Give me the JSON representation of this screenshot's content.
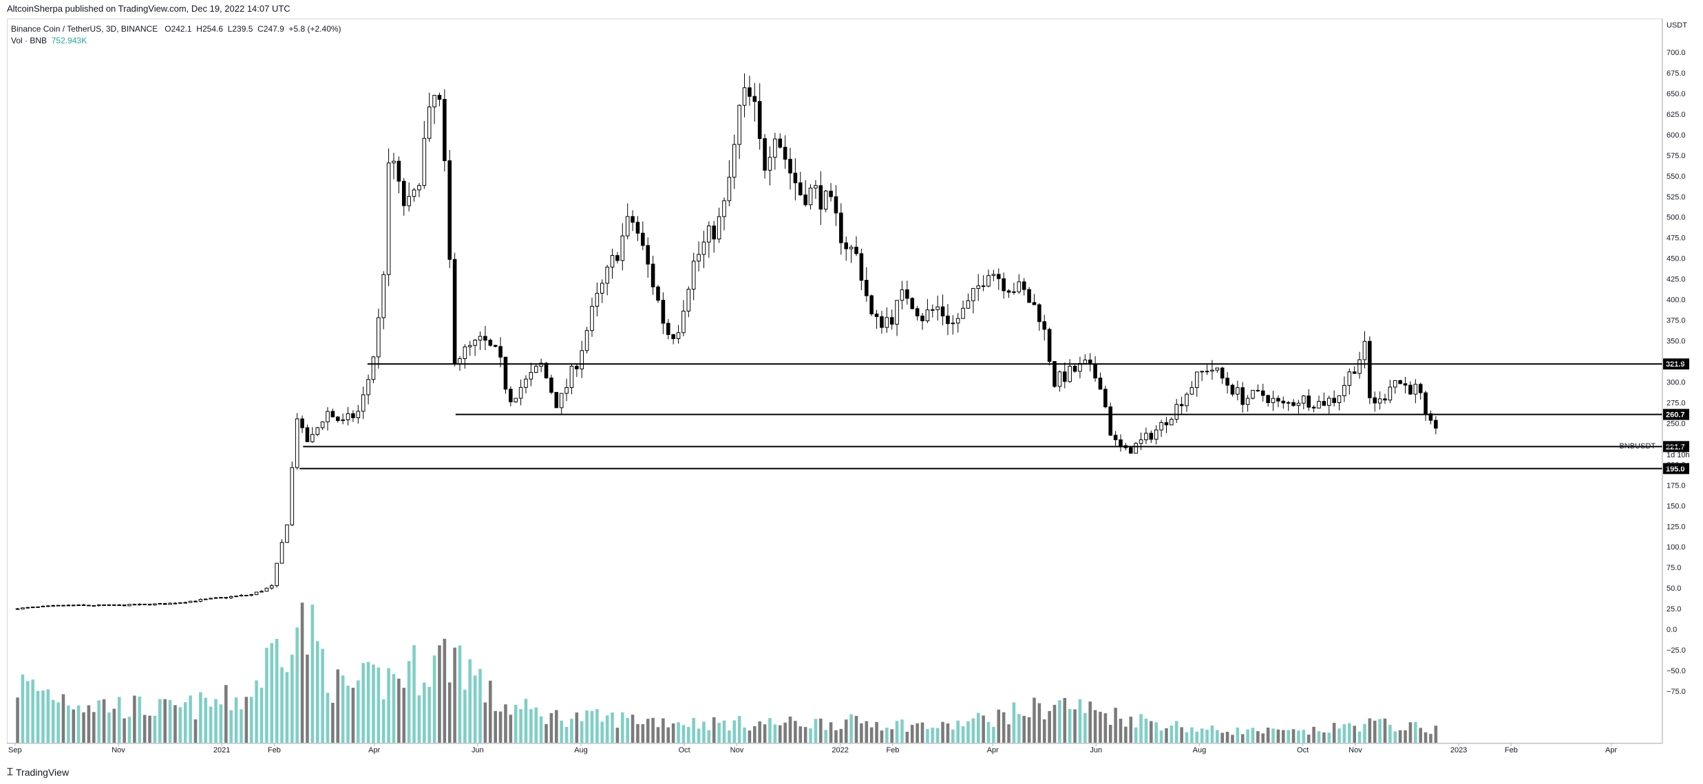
{
  "header": {
    "published_text": "AltcoinSherpa published on TradingView.com, Dec 19, 2022 14:07 UTC"
  },
  "legend": {
    "symbol": "Binance Coin / TetherUS, 3D, BINANCE",
    "o_label": "O",
    "o_value": "242.1",
    "h_label": "H",
    "h_value": "254.6",
    "l_label": "L",
    "l_value": "239.5",
    "c_label": "C",
    "c_value": "247.9",
    "change": "+5.8 (+2.40%)",
    "vol_label": "Vol · BNB",
    "vol_value": "752.943K"
  },
  "footer": {
    "brand": "TradingView"
  },
  "colors": {
    "up_volume": "#7fcfc6",
    "down_volume": "#7b7b7b",
    "candle": "#000000",
    "level_line": "#000000",
    "axis_text": "#131722"
  },
  "chart_data": {
    "type": "candlestick",
    "symbol": "BNBUSDT",
    "interval": "3D",
    "y_axis_unit": "USDT",
    "ylim": [
      -100,
      725
    ],
    "y_ticks": [
      "700.0",
      "675.0",
      "650.0",
      "625.0",
      "600.0",
      "575.0",
      "550.0",
      "525.0",
      "500.0",
      "475.0",
      "450.0",
      "425.0",
      "400.0",
      "375.0",
      "350.0",
      "325.0",
      "300.0",
      "275.0",
      "250.0",
      "225.0",
      "200.0",
      "175.0",
      "150.0",
      "125.0",
      "100.0",
      "75.0",
      "50.0",
      "25.0",
      "0.0",
      "−25.0",
      "−50.0",
      "−75.0"
    ],
    "x_ticks": [
      "Sep",
      "Nov",
      "2021",
      "Feb",
      "Apr",
      "Jun",
      "Aug",
      "Oct",
      "Nov",
      "2022",
      "Feb",
      "Apr",
      "Jun",
      "Aug",
      "Oct",
      "Nov",
      "2023",
      "Feb",
      "Apr"
    ],
    "horizontal_levels": [
      321.9,
      260.7,
      221.7,
      195.0
    ],
    "price_label": {
      "symbol": "BNBUSDT",
      "price": "247.9",
      "countdown": "1d 10h"
    },
    "price_path": [
      {
        "date": "2020-09-01",
        "price": 25
      },
      {
        "date": "2020-10-01",
        "price": 29
      },
      {
        "date": "2020-11-01",
        "price": 29
      },
      {
        "date": "2020-12-01",
        "price": 31
      },
      {
        "date": "2021-01-01",
        "price": 38
      },
      {
        "date": "2021-01-20",
        "price": 42
      },
      {
        "date": "2021-02-01",
        "price": 52
      },
      {
        "date": "2021-02-10",
        "price": 130
      },
      {
        "date": "2021-02-16",
        "price": 260
      },
      {
        "date": "2021-02-20",
        "price": 230
      },
      {
        "date": "2021-02-24",
        "price": 228
      },
      {
        "date": "2021-03-05",
        "price": 265
      },
      {
        "date": "2021-03-15",
        "price": 250
      },
      {
        "date": "2021-03-25",
        "price": 265
      },
      {
        "date": "2021-04-01",
        "price": 320
      },
      {
        "date": "2021-04-07",
        "price": 400
      },
      {
        "date": "2021-04-12",
        "price": 590
      },
      {
        "date": "2021-04-18",
        "price": 520
      },
      {
        "date": "2021-04-25",
        "price": 510
      },
      {
        "date": "2021-05-03",
        "price": 600
      },
      {
        "date": "2021-05-10",
        "price": 660
      },
      {
        "date": "2021-05-16",
        "price": 500
      },
      {
        "date": "2021-05-19",
        "price": 330
      },
      {
        "date": "2021-05-25",
        "price": 335
      },
      {
        "date": "2021-06-05",
        "price": 350
      },
      {
        "date": "2021-06-15",
        "price": 330
      },
      {
        "date": "2021-06-21",
        "price": 280
      },
      {
        "date": "2021-07-01",
        "price": 300
      },
      {
        "date": "2021-07-10",
        "price": 320
      },
      {
        "date": "2021-07-20",
        "price": 270
      },
      {
        "date": "2021-08-01",
        "price": 330
      },
      {
        "date": "2021-08-10",
        "price": 390
      },
      {
        "date": "2021-08-20",
        "price": 440
      },
      {
        "date": "2021-09-01",
        "price": 500
      },
      {
        "date": "2021-09-05",
        "price": 480
      },
      {
        "date": "2021-09-14",
        "price": 420
      },
      {
        "date": "2021-09-22",
        "price": 360
      },
      {
        "date": "2021-09-28",
        "price": 360
      },
      {
        "date": "2021-10-07",
        "price": 440
      },
      {
        "date": "2021-10-15",
        "price": 470
      },
      {
        "date": "2021-10-25",
        "price": 500
      },
      {
        "date": "2021-11-01",
        "price": 580
      },
      {
        "date": "2021-11-05",
        "price": 645
      },
      {
        "date": "2021-11-12",
        "price": 640
      },
      {
        "date": "2021-11-18",
        "price": 560
      },
      {
        "date": "2021-11-25",
        "price": 610
      },
      {
        "date": "2021-12-03",
        "price": 560
      },
      {
        "date": "2021-12-10",
        "price": 530
      },
      {
        "date": "2021-12-20",
        "price": 530
      },
      {
        "date": "2021-12-28",
        "price": 510
      },
      {
        "date": "2022-01-05",
        "price": 470
      },
      {
        "date": "2022-01-13",
        "price": 450
      },
      {
        "date": "2022-01-22",
        "price": 370
      },
      {
        "date": "2022-02-02",
        "price": 380
      },
      {
        "date": "2022-02-10",
        "price": 410
      },
      {
        "date": "2022-02-20",
        "price": 380
      },
      {
        "date": "2022-03-01",
        "price": 390
      },
      {
        "date": "2022-03-10",
        "price": 370
      },
      {
        "date": "2022-03-20",
        "price": 395
      },
      {
        "date": "2022-03-31",
        "price": 440
      },
      {
        "date": "2022-04-10",
        "price": 420
      },
      {
        "date": "2022-04-20",
        "price": 410
      },
      {
        "date": "2022-05-01",
        "price": 380
      },
      {
        "date": "2022-05-09",
        "price": 300
      },
      {
        "date": "2022-05-17",
        "price": 310
      },
      {
        "date": "2022-05-27",
        "price": 320
      },
      {
        "date": "2022-06-05",
        "price": 300
      },
      {
        "date": "2022-06-12",
        "price": 230
      },
      {
        "date": "2022-06-20",
        "price": 215
      },
      {
        "date": "2022-07-01",
        "price": 230
      },
      {
        "date": "2022-07-10",
        "price": 245
      },
      {
        "date": "2022-07-20",
        "price": 270
      },
      {
        "date": "2022-07-30",
        "price": 300
      },
      {
        "date": "2022-08-08",
        "price": 320
      },
      {
        "date": "2022-08-18",
        "price": 300
      },
      {
        "date": "2022-08-28",
        "price": 280
      },
      {
        "date": "2022-09-10",
        "price": 285
      },
      {
        "date": "2022-09-20",
        "price": 270
      },
      {
        "date": "2022-10-01",
        "price": 280
      },
      {
        "date": "2022-10-12",
        "price": 275
      },
      {
        "date": "2022-10-22",
        "price": 280
      },
      {
        "date": "2022-11-02",
        "price": 320
      },
      {
        "date": "2022-11-08",
        "price": 340
      },
      {
        "date": "2022-11-10",
        "price": 280
      },
      {
        "date": "2022-11-18",
        "price": 275
      },
      {
        "date": "2022-11-24",
        "price": 305
      },
      {
        "date": "2022-12-02",
        "price": 295
      },
      {
        "date": "2022-12-10",
        "price": 290
      },
      {
        "date": "2022-12-15",
        "price": 245
      },
      {
        "date": "2022-12-19",
        "price": 248
      }
    ],
    "volume_profile": [
      {
        "date": "2020-09-01",
        "level": 0.45
      },
      {
        "date": "2020-10-15",
        "level": 0.3
      },
      {
        "date": "2020-12-01",
        "level": 0.25
      },
      {
        "date": "2021-01-15",
        "level": 0.35
      },
      {
        "date": "2021-02-10",
        "level": 0.95
      },
      {
        "date": "2021-02-20",
        "level": 0.85
      },
      {
        "date": "2021-03-10",
        "level": 0.4
      },
      {
        "date": "2021-04-10",
        "level": 0.5
      },
      {
        "date": "2021-05-19",
        "level": 0.7
      },
      {
        "date": "2021-06-10",
        "level": 0.3
      },
      {
        "date": "2021-07-15",
        "level": 0.2
      },
      {
        "date": "2021-09-01",
        "level": 0.18
      },
      {
        "date": "2021-10-15",
        "level": 0.15
      },
      {
        "date": "2021-12-01",
        "level": 0.15
      },
      {
        "date": "2022-01-15",
        "level": 0.16
      },
      {
        "date": "2022-03-01",
        "level": 0.12
      },
      {
        "date": "2022-05-10",
        "level": 0.3
      },
      {
        "date": "2022-06-15",
        "level": 0.2
      },
      {
        "date": "2022-08-01",
        "level": 0.1
      },
      {
        "date": "2022-10-01",
        "level": 0.08
      },
      {
        "date": "2022-11-08",
        "level": 0.15
      },
      {
        "date": "2022-12-19",
        "level": 0.1
      }
    ]
  }
}
